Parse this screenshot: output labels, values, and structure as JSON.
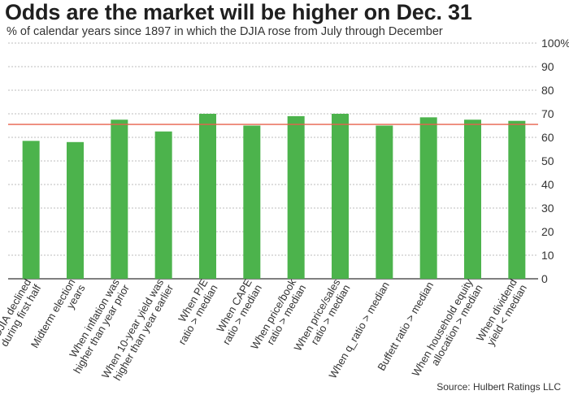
{
  "chart_data": {
    "type": "bar",
    "title": "Odds are the market will be higher on Dec. 31",
    "subtitle": "% of calendar years since 1897 in which the DJIA rose from July through December",
    "source": "Source: Hulbert Ratings LLC",
    "categories": [
      [
        "When DJIA declined",
        "during first half"
      ],
      [
        "Midterm election",
        "years"
      ],
      [
        "When inflation was",
        "higher than year prior"
      ],
      [
        "When 10-year yield was",
        "higher than year earlier"
      ],
      [
        "When P/E",
        "ratio > median"
      ],
      [
        "When CAPE",
        "ratio > median"
      ],
      [
        "When price/book",
        "ratio > median"
      ],
      [
        "When price/sales",
        "ratio > median"
      ],
      [
        "When q_ratio > median"
      ],
      [
        "Buffett ratio > median"
      ],
      [
        "When household equity",
        "allocation > median"
      ],
      [
        "When dividend",
        "yield < median"
      ]
    ],
    "values": [
      58.5,
      58,
      67.5,
      62.5,
      70,
      65,
      69,
      70,
      65,
      68.5,
      67.5,
      67
    ],
    "reference_line": 65.5,
    "ylim": [
      0,
      100
    ],
    "yticks": [
      "0",
      "10",
      "20",
      "30",
      "40",
      "50",
      "60",
      "70",
      "80",
      "90",
      "100%"
    ],
    "grid": true,
    "y_axis_side": "right",
    "colors": {
      "bar": "#4cb34c",
      "reference": "#e8604c",
      "grid": "#bdbdbd",
      "axis": "#333333"
    }
  }
}
